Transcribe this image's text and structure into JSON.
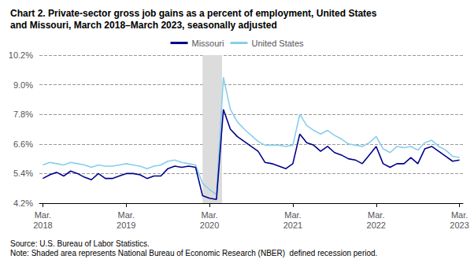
{
  "chart_data": {
    "type": "line",
    "title": "Chart 2. Private-sector gross job gains as a percent of employment, United States\nand Missouri, March 2018–March 2023, seasonally adjusted",
    "note": "Source: U.S. Bureau of Labor Statistics.\nNote: Shaded area represents National Bureau of Economic Research (NBER)  defined recession period.",
    "categories": [
      "Mar.\n2018",
      null,
      null,
      null,
      null,
      null,
      null,
      null,
      null,
      null,
      null,
      null,
      "Mar.\n2019",
      null,
      null,
      null,
      null,
      null,
      null,
      null,
      null,
      null,
      null,
      null,
      "Mar.\n2020",
      null,
      null,
      null,
      null,
      null,
      null,
      null,
      null,
      null,
      null,
      null,
      "Mar.\n2021",
      null,
      null,
      null,
      null,
      null,
      null,
      null,
      null,
      null,
      null,
      null,
      "Mar.\n2022",
      null,
      null,
      null,
      null,
      null,
      null,
      null,
      null,
      null,
      null,
      null,
      "Mar.\n2023"
    ],
    "series": [
      {
        "name": "Missouri",
        "color": "#00008B",
        "values": [
          5.2,
          5.35,
          5.45,
          5.3,
          5.5,
          5.4,
          5.25,
          5.15,
          5.4,
          5.2,
          5.2,
          5.3,
          5.4,
          5.4,
          5.35,
          5.2,
          5.3,
          5.3,
          5.6,
          5.7,
          5.65,
          5.7,
          5.65,
          4.5,
          4.4,
          4.35,
          8.0,
          7.2,
          6.9,
          6.7,
          6.5,
          6.3,
          5.85,
          5.8,
          5.7,
          5.6,
          5.8,
          7.0,
          6.65,
          6.55,
          6.3,
          6.5,
          6.25,
          6.15,
          6.0,
          5.95,
          5.8,
          6.15,
          6.5,
          5.8,
          5.65,
          5.8,
          5.8,
          6.05,
          5.8,
          6.4,
          6.5,
          6.3,
          6.1,
          5.9,
          5.95
        ]
      },
      {
        "name": "United States",
        "color": "#87CEEB",
        "values": [
          5.75,
          5.85,
          5.8,
          5.75,
          5.85,
          5.8,
          5.75,
          5.65,
          5.75,
          5.7,
          5.7,
          5.75,
          5.8,
          5.75,
          5.7,
          5.6,
          5.7,
          5.75,
          5.9,
          5.95,
          5.85,
          5.8,
          5.75,
          5.0,
          4.75,
          4.55,
          9.3,
          8.0,
          7.5,
          7.2,
          6.95,
          6.7,
          6.55,
          6.55,
          6.55,
          6.5,
          6.55,
          7.8,
          7.35,
          7.15,
          7.0,
          7.15,
          6.95,
          6.8,
          6.6,
          6.55,
          6.5,
          6.65,
          6.9,
          6.4,
          6.25,
          6.5,
          6.45,
          6.5,
          6.35,
          6.65,
          6.75,
          6.5,
          6.35,
          6.1,
          6.05
        ]
      }
    ],
    "recession": {
      "start": 23.0,
      "end": 25.8,
      "color": "#DCDCDC"
    },
    "ylim": [
      4.2,
      10.2
    ],
    "yticks": [
      {
        "value": 4.2,
        "label": "4.2%"
      },
      {
        "value": 5.4,
        "label": "5.4%"
      },
      {
        "value": 6.6,
        "label": "6.6%"
      },
      {
        "value": 7.8,
        "label": "7.8%"
      },
      {
        "value": 9.0,
        "label": "9.0%"
      },
      {
        "value": 10.2,
        "label": "10.2%"
      }
    ],
    "grid": true,
    "legend": "upper center"
  }
}
